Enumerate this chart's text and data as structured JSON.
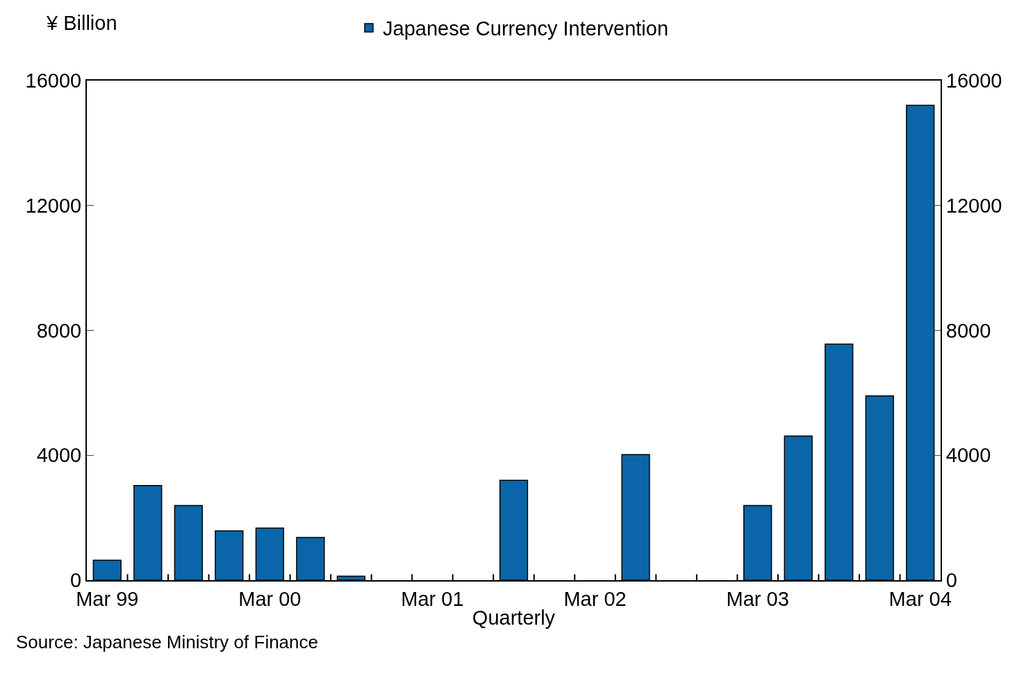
{
  "chart_data": {
    "type": "bar",
    "ylabel": "¥ Billion",
    "xlabel": "Quarterly",
    "categories": [
      "Mar 99",
      null,
      null,
      null,
      "Mar 00",
      null,
      null,
      null,
      "Mar 01",
      null,
      null,
      null,
      "Mar 02",
      null,
      null,
      null,
      "Mar 03",
      null,
      null,
      null,
      "Mar 04"
    ],
    "series": [
      {
        "name": "Japanese Currency Intervention",
        "color": "#0a66a8",
        "values": [
          640,
          3030,
          2390,
          1580,
          1670,
          1370,
          130,
          0,
          0,
          0,
          3200,
          0,
          0,
          4020,
          0,
          0,
          2390,
          4620,
          7560,
          5900,
          15210
        ]
      }
    ],
    "ylim": [
      0,
      16000
    ],
    "yticks": [
      0,
      4000,
      8000,
      12000,
      16000
    ],
    "y2lim": [
      0,
      16000
    ],
    "y2ticks": [
      0,
      4000,
      8000,
      12000,
      16000
    ],
    "legend": "top",
    "annotations": [
      "Source: Japanese Ministry of Finance"
    ]
  }
}
